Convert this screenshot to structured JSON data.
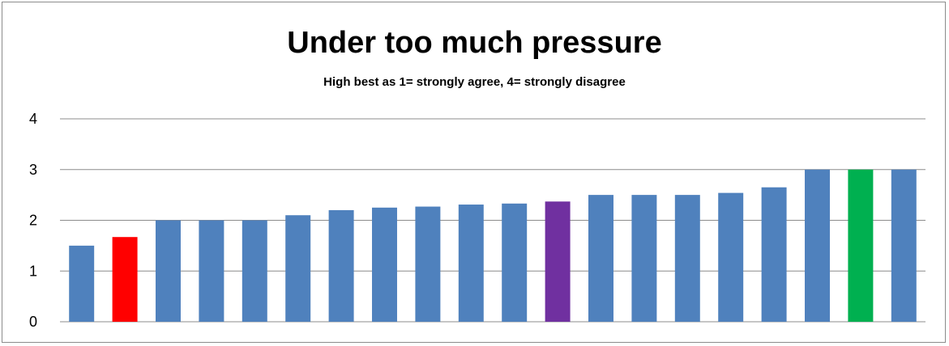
{
  "chart_data": {
    "type": "bar",
    "title": "Under too much pressure",
    "subtitle": "High best  as 1= strongly agree, 4= strongly disagree",
    "xlabel": "",
    "ylabel": "",
    "ylim": [
      0,
      4
    ],
    "yticks": [
      "0",
      "1",
      "2",
      "3",
      "4"
    ],
    "grid": true,
    "legend": "none",
    "values": [
      1.5,
      1.67,
      2.0,
      2.0,
      2.0,
      2.1,
      2.2,
      2.25,
      2.27,
      2.31,
      2.33,
      2.37,
      2.5,
      2.5,
      2.5,
      2.54,
      2.65,
      3.0,
      3.0,
      3.0
    ],
    "colors": [
      "#4f81bd",
      "#ff0000",
      "#4f81bd",
      "#4f81bd",
      "#4f81bd",
      "#4f81bd",
      "#4f81bd",
      "#4f81bd",
      "#4f81bd",
      "#4f81bd",
      "#4f81bd",
      "#7030a0",
      "#4f81bd",
      "#4f81bd",
      "#4f81bd",
      "#4f81bd",
      "#4f81bd",
      "#4f81bd",
      "#00b050",
      "#4f81bd"
    ],
    "gridline_color": "#8c8c8c"
  }
}
